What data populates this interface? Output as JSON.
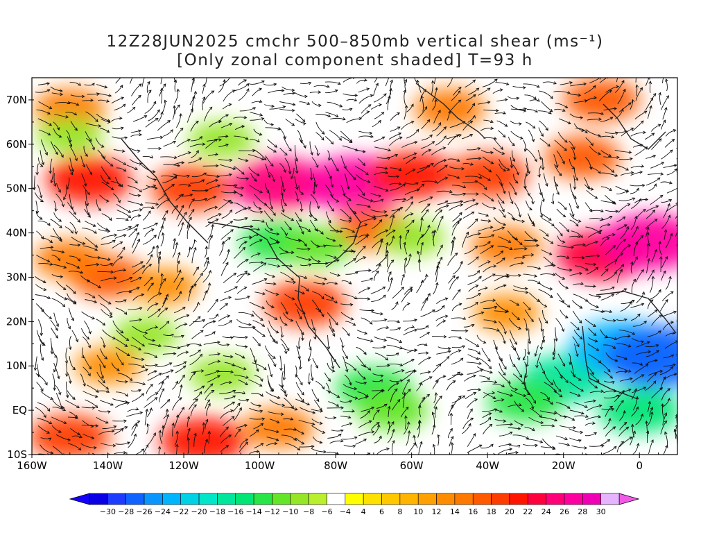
{
  "title": {
    "line1": "12Z28JUN2025 cmchr 500–850mb vertical shear (ms⁻¹)",
    "line2": "[Only zonal component shaded] T=93 h"
  },
  "map": {
    "lon_range": [
      -160,
      10
    ],
    "lat_range": [
      -10,
      75
    ],
    "lat_ticks": [
      {
        "value": 70,
        "label": "70N"
      },
      {
        "value": 60,
        "label": "60N"
      },
      {
        "value": 50,
        "label": "50N"
      },
      {
        "value": 40,
        "label": "40N"
      },
      {
        "value": 30,
        "label": "30N"
      },
      {
        "value": 20,
        "label": "20N"
      },
      {
        "value": 10,
        "label": "10N"
      },
      {
        "value": 0,
        "label": "EQ"
      },
      {
        "value": -10,
        "label": "10S"
      }
    ],
    "lon_ticks": [
      {
        "value": -160,
        "label": "160W"
      },
      {
        "value": -140,
        "label": "140W"
      },
      {
        "value": -120,
        "label": "120W"
      },
      {
        "value": -100,
        "label": "100W"
      },
      {
        "value": -80,
        "label": "80W"
      },
      {
        "value": -60,
        "label": "60W"
      },
      {
        "value": -40,
        "label": "40W"
      },
      {
        "value": -20,
        "label": "20W"
      },
      {
        "value": 0,
        "label": "0"
      }
    ],
    "shear_blobs": [
      {
        "lon": -145,
        "lat": 52,
        "val": 16
      },
      {
        "lon": -118,
        "lat": 50,
        "val": 14
      },
      {
        "lon": -95,
        "lat": 51,
        "val": 20
      },
      {
        "lon": -75,
        "lat": 51,
        "val": 22
      },
      {
        "lon": -60,
        "lat": 53,
        "val": 16
      },
      {
        "lon": -40,
        "lat": 53,
        "val": 14
      },
      {
        "lon": -15,
        "lat": 57,
        "val": 12
      },
      {
        "lon": -10,
        "lat": 35,
        "val": 18
      },
      {
        "lon": 3,
        "lat": 38,
        "val": 22
      },
      {
        "lon": -140,
        "lat": 30,
        "val": 12
      },
      {
        "lon": -125,
        "lat": 28,
        "val": 8
      },
      {
        "lon": -150,
        "lat": 34,
        "val": 10
      },
      {
        "lon": -88,
        "lat": 24,
        "val": 14
      },
      {
        "lon": -70,
        "lat": 41,
        "val": 12
      },
      {
        "lon": -35,
        "lat": 37,
        "val": 10
      },
      {
        "lon": -150,
        "lat": 68,
        "val": 10
      },
      {
        "lon": -50,
        "lat": 68,
        "val": 10
      },
      {
        "lon": -10,
        "lat": 70,
        "val": 12
      },
      {
        "lon": -150,
        "lat": -6,
        "val": 14
      },
      {
        "lon": -115,
        "lat": -7,
        "val": 16
      },
      {
        "lon": -95,
        "lat": -4,
        "val": 10
      },
      {
        "lon": -140,
        "lat": 10,
        "val": 8
      },
      {
        "lon": -35,
        "lat": 22,
        "val": 8
      },
      {
        "lon": -95,
        "lat": 38,
        "val": -12
      },
      {
        "lon": -85,
        "lat": 37,
        "val": -10
      },
      {
        "lon": -70,
        "lat": 5,
        "val": -12
      },
      {
        "lon": -65,
        "lat": 0,
        "val": -10
      },
      {
        "lon": -20,
        "lat": 7,
        "val": -16
      },
      {
        "lon": -5,
        "lat": 14,
        "val": -22
      },
      {
        "lon": 5,
        "lat": 12,
        "val": -26
      },
      {
        "lon": 0,
        "lat": 0,
        "val": -14
      },
      {
        "lon": -30,
        "lat": 2,
        "val": -12
      },
      {
        "lon": -110,
        "lat": 8,
        "val": -8
      },
      {
        "lon": -130,
        "lat": 17,
        "val": -8
      },
      {
        "lon": -150,
        "lat": 62,
        "val": -8
      },
      {
        "lon": -110,
        "lat": 61,
        "val": -8
      },
      {
        "lon": -60,
        "lat": 39,
        "val": -8
      }
    ]
  },
  "colorbar": {
    "colors": [
      "#0a00e6",
      "#1e3cff",
      "#0f64ff",
      "#0a96ff",
      "#00b4ff",
      "#00d2e6",
      "#00e6c8",
      "#00e69a",
      "#00e676",
      "#28e646",
      "#64e628",
      "#96e628",
      "#b9ef2d",
      "#ffffff",
      "#ffff00",
      "#ffe100",
      "#ffc800",
      "#ffb400",
      "#ffa000",
      "#ff8c00",
      "#ff7800",
      "#ff5a00",
      "#ff3c00",
      "#ff1400",
      "#ff003c",
      "#ff0078",
      "#ff00a0",
      "#f000b4",
      "#e6b4ff"
    ],
    "labels": [
      "−30",
      "−28",
      "−26",
      "−24",
      "−22",
      "−20",
      "−18",
      "−16",
      "−14",
      "−12",
      "−10",
      "−8",
      "−6",
      "−4",
      "4",
      "6",
      "8",
      "10",
      "12",
      "14",
      "16",
      "18",
      "20",
      "22",
      "24",
      "26",
      "28",
      "30"
    ],
    "under_color": "#1400ff",
    "over_color": "#f05ae6"
  }
}
